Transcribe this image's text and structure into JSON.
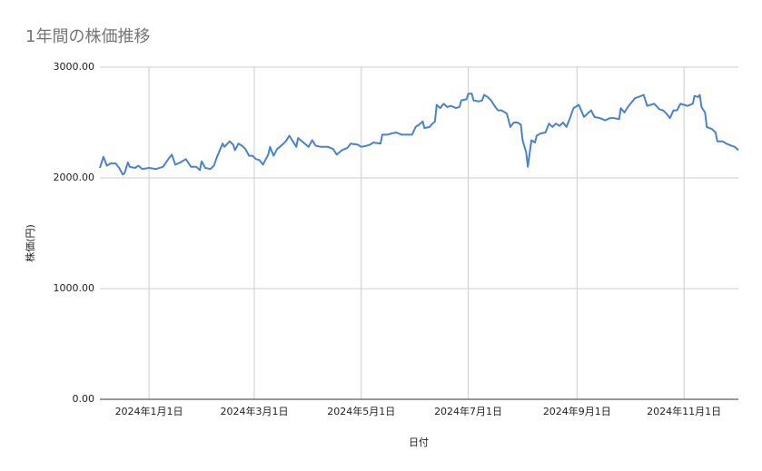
{
  "chart_data": {
    "type": "line",
    "title": "1年間の株価推移",
    "x_label": "日付",
    "y_label": "株価(円)",
    "color": "#4a82cf",
    "grid": true,
    "xlim": [
      "2023-12-04",
      "2024-12-02"
    ],
    "xticks": [
      {
        "value": "2024-01-01",
        "label": "2024年1月1日"
      },
      {
        "value": "2024-03-01",
        "label": "2024年3月1日"
      },
      {
        "value": "2024-05-01",
        "label": "2024年5月1日"
      },
      {
        "value": "2024-07-01",
        "label": "2024年7月1日"
      },
      {
        "value": "2024-09-01",
        "label": "2024年9月1日"
      },
      {
        "value": "2024-11-01",
        "label": "2024年11月1日"
      }
    ],
    "ylim": [
      0,
      3000
    ],
    "yticks": [
      {
        "value": 0,
        "label": "0.00"
      },
      {
        "value": 1000,
        "label": "1000.00"
      },
      {
        "value": 2000,
        "label": "2000.00"
      },
      {
        "value": 3000,
        "label": "3000.00"
      }
    ],
    "x": [
      "2023-12-04",
      "2023-12-06",
      "2023-12-08",
      "2023-12-10",
      "2023-12-13",
      "2023-12-15",
      "2023-12-17",
      "2023-12-18",
      "2023-12-20",
      "2023-12-21",
      "2023-12-24",
      "2023-12-26",
      "2023-12-28",
      "2024-01-01",
      "2024-01-05",
      "2024-01-09",
      "2024-01-12",
      "2024-01-14",
      "2024-01-16",
      "2024-01-19",
      "2024-01-22",
      "2024-01-25",
      "2024-01-28",
      "2024-01-30",
      "2024-01-31",
      "2024-02-02",
      "2024-02-05",
      "2024-02-07",
      "2024-02-09",
      "2024-02-12",
      "2024-02-13",
      "2024-02-16",
      "2024-02-18",
      "2024-02-19",
      "2024-02-21",
      "2024-02-23",
      "2024-02-25",
      "2024-02-27",
      "2024-02-29",
      "2024-03-02",
      "2024-03-04",
      "2024-03-06",
      "2024-03-07",
      "2024-03-09",
      "2024-03-10",
      "2024-03-12",
      "2024-03-14",
      "2024-03-17",
      "2024-03-19",
      "2024-03-21",
      "2024-03-23",
      "2024-03-25",
      "2024-03-26",
      "2024-03-29",
      "2024-04-01",
      "2024-04-03",
      "2024-04-05",
      "2024-04-08",
      "2024-04-12",
      "2024-04-15",
      "2024-04-17",
      "2024-04-20",
      "2024-04-23",
      "2024-04-25",
      "2024-04-29",
      "2024-05-01",
      "2024-05-04",
      "2024-05-06",
      "2024-05-08",
      "2024-05-12",
      "2024-05-13",
      "2024-05-16",
      "2024-05-18",
      "2024-05-21",
      "2024-05-24",
      "2024-05-28",
      "2024-05-30",
      "2024-06-01",
      "2024-06-03",
      "2024-06-05",
      "2024-06-06",
      "2024-06-09",
      "2024-06-10",
      "2024-06-12",
      "2024-06-13",
      "2024-06-15",
      "2024-06-17",
      "2024-06-19",
      "2024-06-21",
      "2024-06-24",
      "2024-06-26",
      "2024-06-27",
      "2024-06-30",
      "2024-07-01",
      "2024-07-03",
      "2024-07-04",
      "2024-07-07",
      "2024-07-09",
      "2024-07-10",
      "2024-07-12",
      "2024-07-14",
      "2024-07-16",
      "2024-07-18",
      "2024-07-20",
      "2024-07-23",
      "2024-07-25",
      "2024-07-27",
      "2024-07-29",
      "2024-07-31",
      "2024-08-01",
      "2024-08-03",
      "2024-08-04",
      "2024-08-06",
      "2024-08-08",
      "2024-08-09",
      "2024-08-11",
      "2024-08-14",
      "2024-08-16",
      "2024-08-18",
      "2024-08-20",
      "2024-08-22",
      "2024-08-24",
      "2024-08-26",
      "2024-08-28",
      "2024-08-30",
      "2024-09-02",
      "2024-09-05",
      "2024-09-07",
      "2024-09-09",
      "2024-09-11",
      "2024-09-14",
      "2024-09-17",
      "2024-09-20",
      "2024-09-22",
      "2024-09-25",
      "2024-09-26",
      "2024-09-28",
      "2024-09-30",
      "2024-10-04",
      "2024-10-06",
      "2024-10-09",
      "2024-10-11",
      "2024-10-13",
      "2024-10-15",
      "2024-10-18",
      "2024-10-20",
      "2024-10-22",
      "2024-10-24",
      "2024-10-26",
      "2024-10-28",
      "2024-10-30",
      "2024-11-01",
      "2024-11-03",
      "2024-11-06",
      "2024-11-07",
      "2024-11-09",
      "2024-11-10",
      "2024-11-11",
      "2024-11-13",
      "2024-11-14",
      "2024-11-17",
      "2024-11-19",
      "2024-11-20",
      "2024-11-23",
      "2024-11-25",
      "2024-11-28",
      "2024-11-30",
      "2024-12-02"
    ],
    "values": [
      2090,
      2190,
      2110,
      2130,
      2130,
      2090,
      2030,
      2040,
      2140,
      2100,
      2090,
      2110,
      2080,
      2090,
      2080,
      2100,
      2170,
      2210,
      2120,
      2140,
      2170,
      2100,
      2100,
      2070,
      2150,
      2090,
      2080,
      2110,
      2200,
      2310,
      2280,
      2330,
      2300,
      2250,
      2310,
      2290,
      2260,
      2200,
      2200,
      2170,
      2160,
      2120,
      2150,
      2210,
      2280,
      2200,
      2260,
      2300,
      2330,
      2380,
      2330,
      2280,
      2360,
      2320,
      2280,
      2340,
      2290,
      2280,
      2280,
      2260,
      2210,
      2250,
      2270,
      2310,
      2300,
      2280,
      2290,
      2300,
      2320,
      2310,
      2390,
      2390,
      2400,
      2410,
      2390,
      2390,
      2390,
      2460,
      2480,
      2510,
      2450,
      2460,
      2480,
      2510,
      2660,
      2630,
      2670,
      2640,
      2650,
      2630,
      2640,
      2700,
      2710,
      2760,
      2760,
      2700,
      2690,
      2700,
      2750,
      2730,
      2700,
      2650,
      2610,
      2610,
      2580,
      2460,
      2500,
      2500,
      2480,
      2340,
      2230,
      2100,
      2340,
      2320,
      2380,
      2400,
      2410,
      2490,
      2460,
      2490,
      2470,
      2500,
      2460,
      2540,
      2630,
      2660,
      2550,
      2580,
      2610,
      2550,
      2540,
      2520,
      2540,
      2540,
      2530,
      2630,
      2590,
      2640,
      2720,
      2730,
      2750,
      2650,
      2660,
      2670,
      2620,
      2610,
      2580,
      2540,
      2610,
      2610,
      2670,
      2660,
      2650,
      2670,
      2740,
      2730,
      2750,
      2640,
      2590,
      2460,
      2440,
      2410,
      2330,
      2330,
      2310,
      2290,
      2280,
      2250
    ]
  }
}
